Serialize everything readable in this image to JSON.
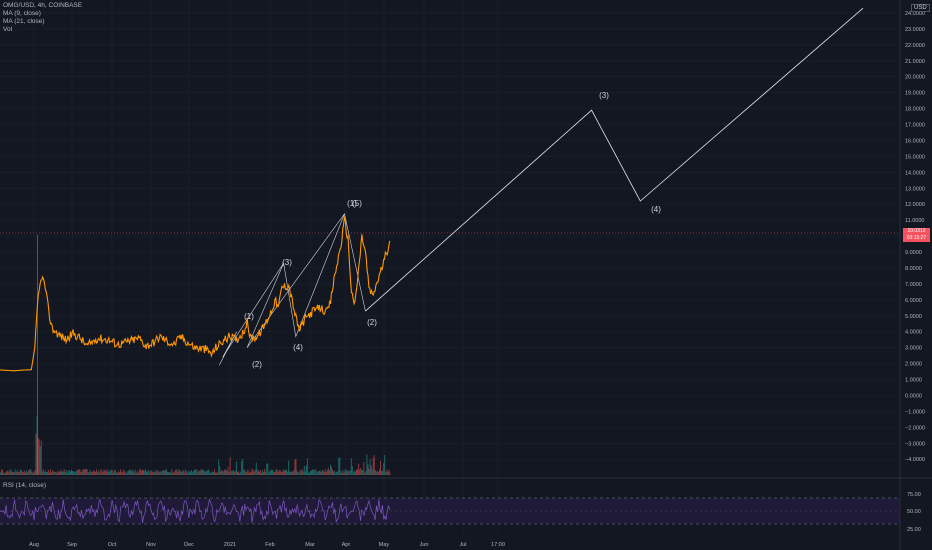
{
  "header": {
    "symbol_line": "OMG/USD, 4h, COINBASE",
    "ma1": "MA (9, close)",
    "ma2": "MA (21, close)",
    "vol": "Vol",
    "rsi": "RSI (14, close)",
    "currency": "USD"
  },
  "price_badge": {
    "price": "10.0312",
    "countdown": "03:15:27"
  },
  "colors": {
    "background": "#131722",
    "price_line": "#ff9800",
    "rsi_line": "#7e57c2",
    "rsi_band": "#2a1f4a",
    "last_price": "#f7525f",
    "projection": "#e0e3eb"
  },
  "price_axis": {
    "ticks": [
      "24.0000",
      "23.0000",
      "22.0000",
      "21.0000",
      "20.0000",
      "19.0000",
      "18.0000",
      "17.0000",
      "16.0000",
      "15.0000",
      "14.0000",
      "13.0000",
      "12.0000",
      "11.0000",
      "9.0000",
      "8.0000",
      "7.0000",
      "6.0000",
      "5.0000",
      "4.0000",
      "3.0000",
      "2.0000",
      "1.0000",
      "0.0000",
      "−1.0000",
      "−2.0000",
      "−3.0000",
      "−4.0000"
    ]
  },
  "rsi_axis": {
    "ticks": [
      "75.00",
      "50.00",
      "25.00"
    ]
  },
  "time_axis": {
    "ticks": [
      "Aug",
      "Sep",
      "Oct",
      "Nov",
      "Dec",
      "2021",
      "Feb",
      "Mar",
      "Apr",
      "May",
      "Jun",
      "Jul",
      "17:00"
    ]
  },
  "wave_labels": [
    "(1)",
    "(2)",
    "(3)",
    "(4)",
    "(1)",
    "(5)",
    "(2)",
    "(3)",
    "(4)"
  ],
  "chart_data": {
    "type": "line",
    "price_path": [
      [
        0,
        1.6
      ],
      [
        8,
        1.55
      ],
      [
        14,
        1.6
      ],
      [
        18,
        1.62
      ],
      [
        20,
        3.0
      ],
      [
        22,
        6.2
      ],
      [
        24,
        7.5
      ],
      [
        26,
        6.8
      ],
      [
        28,
        5.2
      ],
      [
        30,
        4.2
      ],
      [
        34,
        3.8
      ],
      [
        38,
        3.5
      ],
      [
        42,
        3.9
      ],
      [
        46,
        3.6
      ],
      [
        50,
        3.1
      ],
      [
        56,
        3.6
      ],
      [
        62,
        3.5
      ],
      [
        68,
        3.2
      ],
      [
        74,
        3.4
      ],
      [
        80,
        3.6
      ],
      [
        84,
        3.1
      ],
      [
        88,
        3.3
      ],
      [
        92,
        3.7
      ],
      [
        96,
        3.4
      ],
      [
        100,
        3.2
      ],
      [
        104,
        3.7
      ],
      [
        108,
        3.3
      ],
      [
        112,
        3.0
      ],
      [
        118,
        2.9
      ],
      [
        122,
        2.6
      ],
      [
        124,
        3.0
      ],
      [
        128,
        3.4
      ],
      [
        132,
        3.7
      ],
      [
        136,
        3.5
      ],
      [
        140,
        4.0
      ],
      [
        142,
        4.6
      ],
      [
        144,
        3.6
      ],
      [
        148,
        3.7
      ],
      [
        152,
        4.4
      ],
      [
        156,
        5.3
      ],
      [
        158,
        6.0
      ],
      [
        160,
        5.5
      ],
      [
        162,
        6.8
      ],
      [
        166,
        6.9
      ],
      [
        170,
        4.9
      ],
      [
        172,
        4.1
      ],
      [
        176,
        4.9
      ],
      [
        180,
        5.3
      ],
      [
        184,
        5.5
      ],
      [
        188,
        5.2
      ],
      [
        190,
        5.9
      ],
      [
        192,
        7.3
      ],
      [
        196,
        9.5
      ],
      [
        198,
        11.0
      ],
      [
        200,
        9.8
      ],
      [
        202,
        6.5
      ],
      [
        204,
        5.7
      ],
      [
        206,
        7.8
      ],
      [
        208,
        10.0
      ],
      [
        210,
        9.0
      ],
      [
        212,
        6.8
      ],
      [
        214,
        6.2
      ],
      [
        218,
        7.5
      ],
      [
        222,
        8.9
      ],
      [
        224,
        9.7
      ]
    ],
    "wave_points": [
      {
        "label": "(2)",
        "x": 128,
        "y": 2.5
      },
      {
        "label": "(1)",
        "x": 136,
        "y": 4.1
      },
      {
        "label": "(3)",
        "x": 163,
        "y": 8.3
      },
      {
        "label": "(4)",
        "x": 170,
        "y": 3.7
      },
      {
        "label": "(1)",
        "x": 198,
        "y": 11.3
      },
      {
        "label": "(5)",
        "x": 198,
        "y": 11.3
      },
      {
        "label": "(2)",
        "x": 210,
        "y": 5.3
      }
    ],
    "projection": [
      [
        210,
        5.3
      ],
      [
        340,
        17.9
      ],
      [
        368,
        12.2
      ],
      [
        496,
        24.3
      ]
    ],
    "ylim": [
      -4.8,
      24.5
    ],
    "rsi_levels": [
      70,
      30
    ]
  }
}
